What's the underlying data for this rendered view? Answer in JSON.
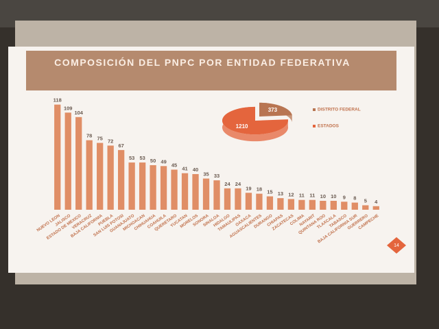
{
  "chart_data": [
    {
      "type": "bar",
      "title": "COMPOSICIÓN DEL PNPC POR ENTIDAD FEDERATIVA",
      "categories": [
        "NUEVO LEON",
        "JALISCO",
        "ESTADO DE MEXICO",
        "VERACRUZ",
        "BAJA CALIFORNIA",
        "PUEBLA",
        "SAN LUIS POTOSI",
        "GUANAJUATO",
        "MICHOACAN",
        "CHIHUAHUA",
        "COAHUILA",
        "QUERETARO",
        "YUCATAN",
        "MORELOS",
        "SONORA",
        "SINALOA",
        "HIDALGO",
        "TAMAULIPAS",
        "OAXACA",
        "AGUASCALIENTES",
        "DURANGO",
        "CHIAPAS",
        "ZACATECAS",
        "COLIMA",
        "NAYARIT",
        "QUINTANA ROO",
        "TLAXCALA",
        "TABASCO",
        "BAJA CALIFORNIA SUR",
        "GUERRERO",
        "CAMPECHE"
      ],
      "values": [
        118,
        109,
        104,
        78,
        75,
        72,
        67,
        53,
        53,
        50,
        49,
        45,
        41,
        40,
        35,
        33,
        24,
        24,
        19,
        18,
        15,
        13,
        12,
        11,
        11,
        10,
        10,
        9,
        8,
        5,
        4
      ],
      "color": "#e08e66",
      "ylim": [
        0,
        120
      ]
    },
    {
      "type": "pie",
      "categories": [
        "DISTRITO FEDERAL",
        "ESTADOS"
      ],
      "values": [
        373,
        1210
      ],
      "colors": [
        "#b87552",
        "#e4653d"
      ]
    }
  ],
  "slide_number": "14"
}
